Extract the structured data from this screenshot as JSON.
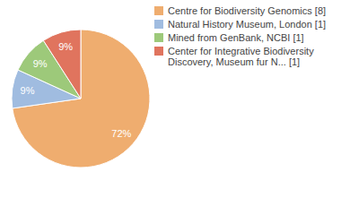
{
  "chart_data": {
    "type": "pie",
    "categories": [
      "Centre for Biodiversity Genomics [8]",
      "Natural History Museum, London [1]",
      "Mined from GenBank, NCBI [1]",
      "Center for Integrative Biodiversity Discovery, Museum fur N... [1]"
    ],
    "values": [
      72,
      9,
      9,
      9
    ],
    "value_labels": [
      "72%",
      "9%",
      "9%",
      "9%"
    ],
    "colors": [
      "#efad6f",
      "#a0bce0",
      "#9dc97a",
      "#e0745e"
    ],
    "data_labels": true,
    "legend": "right"
  }
}
